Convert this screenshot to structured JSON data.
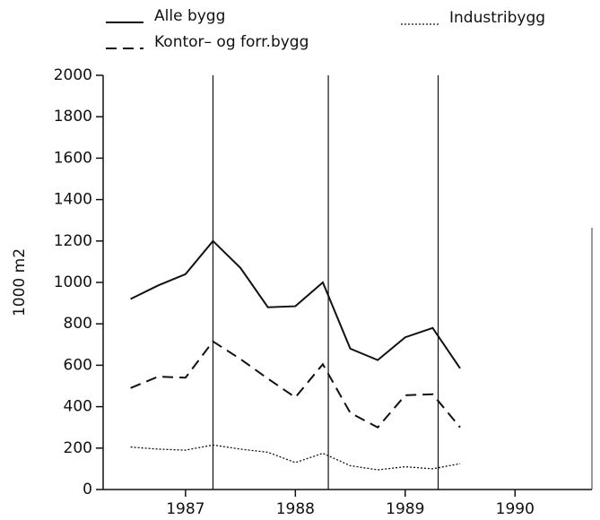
{
  "chart_data": {
    "type": "line",
    "y_label": "1000 m2",
    "x": [
      1986.5,
      1986.75,
      1987,
      1987.25,
      1987.5,
      1987.75,
      1988,
      1988.25,
      1988.5,
      1988.75,
      1989,
      1989.25,
      1989.5
    ],
    "series": [
      {
        "name": "Alle bygg",
        "color": "#111111",
        "line_style": "solid",
        "values": [
          920,
          985,
          1040,
          1200,
          1070,
          880,
          885,
          1000,
          680,
          625,
          735,
          780,
          585
        ]
      },
      {
        "name": "Kontor– og forr.bygg",
        "color": "#111111",
        "line_style": "dashed",
        "values": [
          490,
          545,
          540,
          715,
          630,
          535,
          445,
          605,
          370,
          300,
          455,
          460,
          300
        ]
      },
      {
        "name": "Industribygg",
        "color": "#111111",
        "line_style": "dotted",
        "values": [
          205,
          195,
          190,
          215,
          195,
          180,
          130,
          175,
          115,
          95,
          110,
          100,
          125
        ]
      }
    ],
    "xlim": [
      1986.25,
      1990.7
    ],
    "xticks": [
      1987,
      1988,
      1989,
      1990
    ],
    "ylim": [
      0,
      2000
    ],
    "yticks": [
      0,
      200,
      400,
      600,
      800,
      1000,
      1200,
      1400,
      1600,
      1800,
      2000
    ],
    "vlines": [
      1987.25,
      1988.3,
      1989.3
    ]
  }
}
